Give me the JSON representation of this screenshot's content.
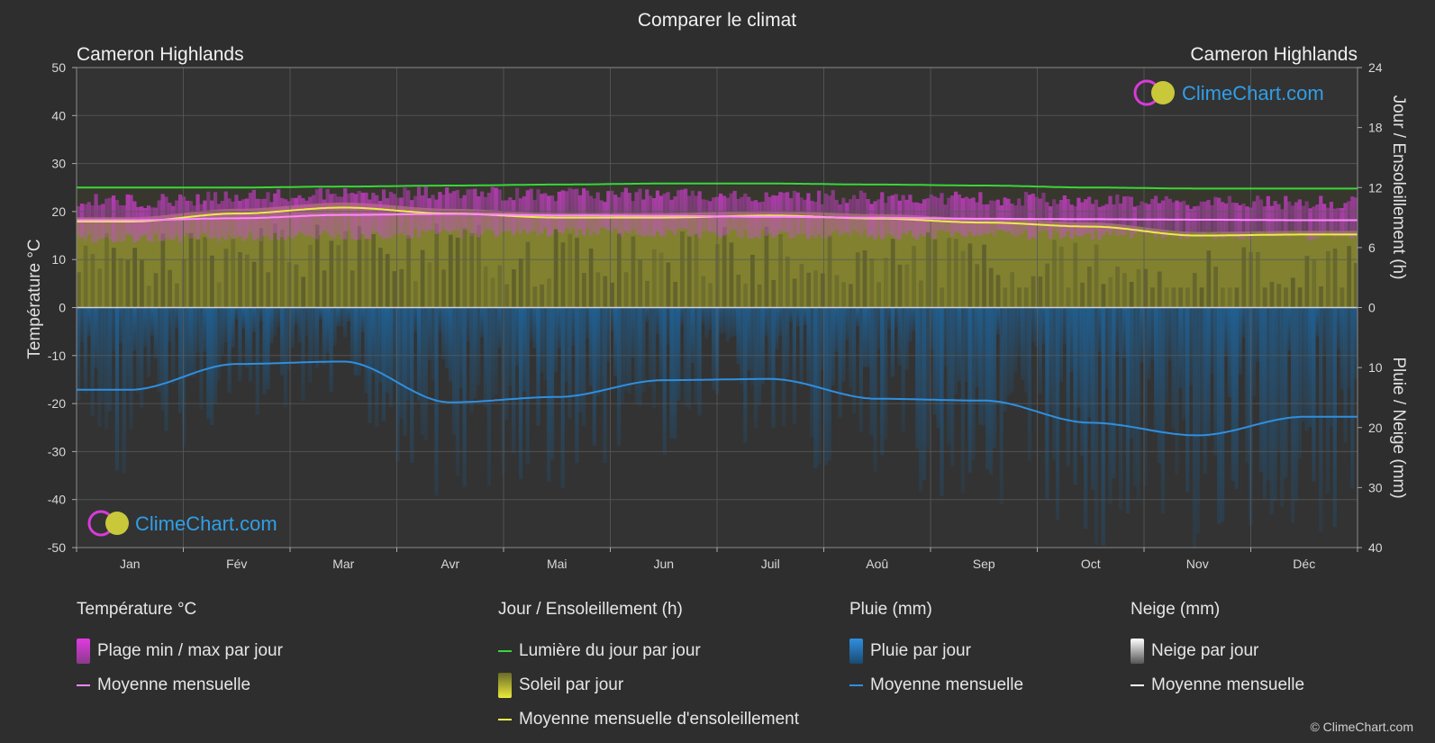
{
  "title": "Comparer le climat",
  "location_left": "Cameron Highlands",
  "location_right": "Cameron Highlands",
  "logo_text": "ClimeChart.com",
  "copyright": "© ClimeChart.com",
  "colors": {
    "background": "#2e2e2e",
    "temp_range": "#d63ad6",
    "temp_mean": "#ff88ff",
    "daylight": "#39d639",
    "sunshine": "#c8c83a",
    "sunshine_mean": "#ebeb4e",
    "rain": "#1f74b8",
    "rain_mean": "#2f8fe0",
    "snow_mean": "#ffffff",
    "logo": "#2f9fe8"
  },
  "chart_data": {
    "type": "line",
    "categories": [
      "Jan",
      "Fév",
      "Mar",
      "Avr",
      "Mai",
      "Jun",
      "Juil",
      "Aoû",
      "Sep",
      "Oct",
      "Nov",
      "Déc"
    ],
    "axes": {
      "left": {
        "label": "Température °C",
        "range": [
          -50,
          50
        ],
        "ticks": [
          50,
          40,
          30,
          20,
          10,
          0,
          -10,
          -20,
          -30,
          -40,
          -50
        ]
      },
      "right_top": {
        "label": "Jour / Ensoleillement (h)",
        "range": [
          0,
          24
        ],
        "ticks": [
          24,
          18,
          12,
          6,
          0
        ]
      },
      "right_bottom": {
        "label": "Pluie / Neige (mm)",
        "range": [
          0,
          40
        ],
        "inverted": true,
        "ticks": [
          10,
          20,
          30,
          40
        ]
      }
    },
    "grid": true,
    "series": [
      {
        "name": "Lumière du jour par jour",
        "unit": "h",
        "values": [
          12.0,
          12.0,
          12.1,
          12.2,
          12.3,
          12.4,
          12.4,
          12.3,
          12.2,
          12.0,
          11.9,
          11.9
        ]
      },
      {
        "name": "Moyenne mensuelle d'ensoleillement",
        "unit": "h",
        "values": [
          8.6,
          9.4,
          10.0,
          9.4,
          9.0,
          9.0,
          9.2,
          8.9,
          8.5,
          8.1,
          7.2,
          7.3
        ]
      },
      {
        "name": "Moyenne mensuelle",
        "metric": "temperature",
        "unit": "°C",
        "values": [
          18.2,
          18.6,
          19.3,
          19.5,
          19.2,
          19.1,
          18.9,
          18.7,
          18.5,
          18.4,
          18.3,
          18.2
        ]
      },
      {
        "name": "Plage min / max par jour",
        "metric": "temperature",
        "unit": "°C",
        "min": [
          14.5,
          14.6,
          15.0,
          15.5,
          15.8,
          15.6,
          15.3,
          15.2,
          15.2,
          15.1,
          15.0,
          14.8
        ],
        "max": [
          22.2,
          23.0,
          23.6,
          23.8,
          23.6,
          23.4,
          23.1,
          22.9,
          22.7,
          22.4,
          21.8,
          21.9
        ]
      },
      {
        "name": "Moyenne mensuelle",
        "metric": "rain",
        "unit": "mm",
        "values": [
          13.7,
          9.4,
          9.0,
          15.8,
          14.9,
          12.1,
          11.9,
          15.2,
          15.5,
          19.2,
          21.3,
          18.2
        ]
      }
    ]
  },
  "legend": {
    "temperature": {
      "header": "Température °C",
      "items": [
        "Plage min / max par jour",
        "Moyenne mensuelle"
      ]
    },
    "sun": {
      "header": "Jour / Ensoleillement (h)",
      "items": [
        "Lumière du jour par jour",
        "Soleil par jour",
        "Moyenne mensuelle d'ensoleillement"
      ]
    },
    "rain": {
      "header": "Pluie (mm)",
      "items": [
        "Pluie par jour",
        "Moyenne mensuelle"
      ]
    },
    "snow": {
      "header": "Neige (mm)",
      "items": [
        "Neige par jour",
        "Moyenne mensuelle"
      ]
    }
  }
}
